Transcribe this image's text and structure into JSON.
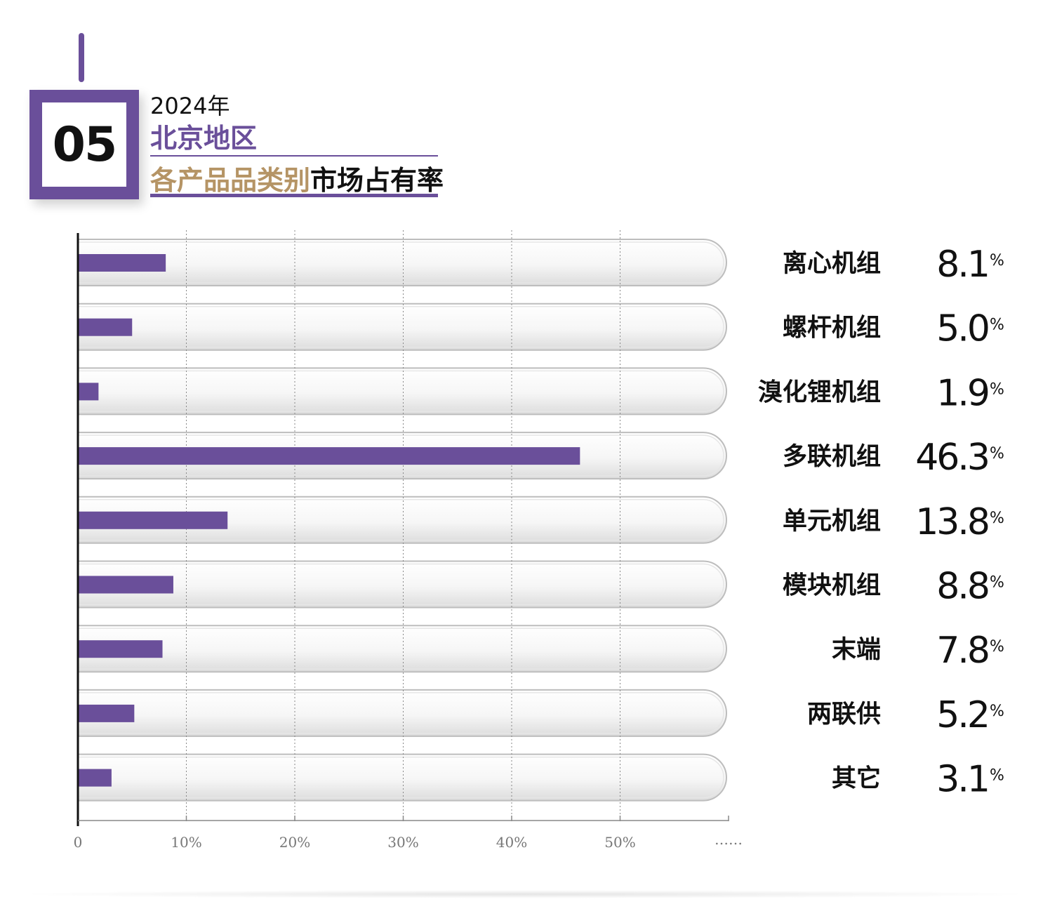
{
  "header": {
    "number": "05",
    "year": "2024年",
    "region": "北京地区",
    "subtitle_part1": "各产品品类别",
    "subtitle_part2": "市场占有率"
  },
  "colors": {
    "accent": "#6a4f9a",
    "gold": "#b59465",
    "text": "#111111"
  },
  "chart_data": {
    "type": "bar",
    "orientation": "horizontal",
    "title": "2024年北京地区各产品品类别市场占有率",
    "categories": [
      "离心机组",
      "螺杆机组",
      "溴化锂机组",
      "多联机组",
      "单元机组",
      "模块机组",
      "末端",
      "两联供",
      "其它"
    ],
    "values": [
      8.1,
      5.0,
      1.9,
      46.3,
      13.8,
      8.8,
      7.8,
      5.2,
      3.1
    ],
    "value_labels": [
      "8.1",
      "5.0",
      "1.9",
      "46.3",
      "13.8",
      "8.8",
      "7.8",
      "5.2",
      "3.1"
    ],
    "value_unit": "%",
    "x_ticks": [
      "0",
      "10%",
      "20%",
      "30%",
      "40%",
      "50%",
      "……"
    ],
    "x_tick_values": [
      0,
      10,
      20,
      30,
      40,
      50
    ],
    "xlim": [
      0,
      60
    ],
    "grid": true,
    "bar_color": "#6a4f9a"
  }
}
